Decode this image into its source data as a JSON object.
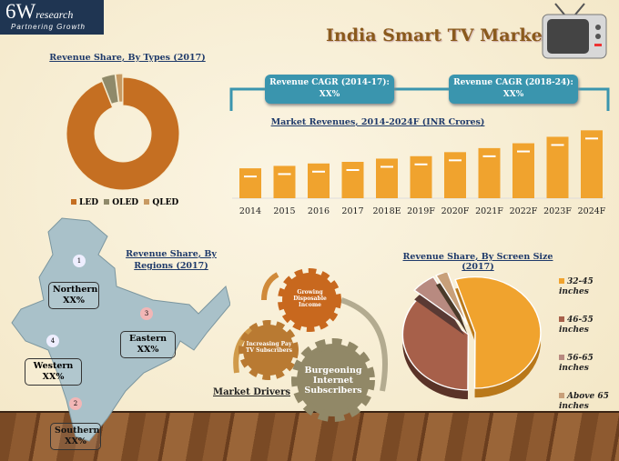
{
  "logo": {
    "brand": "6W",
    "brand_suffix": "research",
    "tagline": "Partnering Growth"
  },
  "title": "India Smart TV Market",
  "cagr": [
    {
      "label": "Revenue CAGR (2014-17):",
      "value": "XX%"
    },
    {
      "label": "Revenue CAGR (2018-24):",
      "value": "XX%"
    }
  ],
  "colors": {
    "bar": "#f0a32e",
    "led": "#c56f22",
    "oled": "#8f8a6a",
    "qled": "#c89a62",
    "accent": "#3a95ae"
  },
  "chart_data": [
    {
      "type": "pie",
      "title": "Revenue Share, By Types (2017)",
      "donut": true,
      "legend": "bottom",
      "categories": [
        "LED",
        "OLED",
        "QLED"
      ],
      "values": [
        94,
        4,
        2
      ]
    },
    {
      "type": "bar",
      "title": "Market Revenues, 2014-2024F (INR Crores)",
      "categories": [
        "2014",
        "2015",
        "2016",
        "2017",
        "2018E",
        "2019F",
        "2020F",
        "2021F",
        "2022F",
        "2023F",
        "2024F"
      ],
      "values": [
        37,
        40,
        43,
        45,
        49,
        52,
        57,
        62,
        68,
        76,
        84
      ],
      "grid": false
    },
    {
      "type": "pie",
      "title": "Revenue Share, By Screen Size (2017)",
      "legend": "right",
      "categories": [
        "32-45 inches",
        "46-55 inches",
        "56-65 inches",
        "Above 65 inches"
      ],
      "values": [
        55,
        36,
        6,
        3
      ]
    }
  ],
  "regions": {
    "title": "Revenue Share, By Regions (2017)",
    "items": [
      {
        "n": "1",
        "name": "Northern",
        "value": "XX%"
      },
      {
        "n": "3",
        "name": "Eastern",
        "value": "XX%"
      },
      {
        "n": "4",
        "name": "Western",
        "value": "XX%"
      },
      {
        "n": "2",
        "name": "Southern",
        "value": "XX%"
      }
    ]
  },
  "drivers": {
    "title": "Market Drivers",
    "items": [
      "Growing Disposable Income",
      "Increasing Pay TV Subscribers",
      "Burgeoning Internet Subscribers"
    ]
  }
}
